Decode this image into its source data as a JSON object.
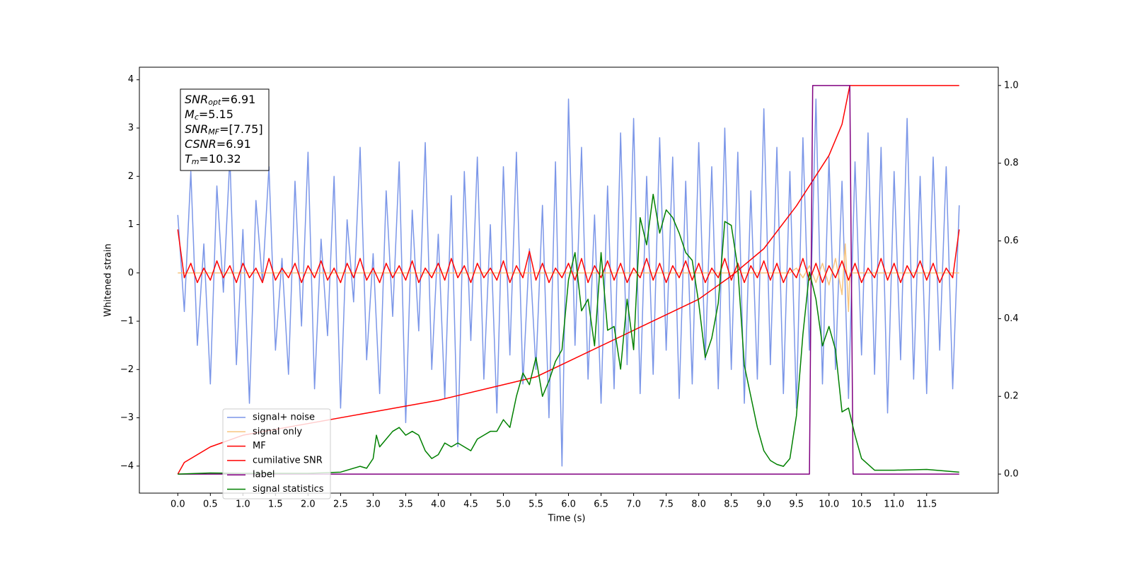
{
  "chart_data": {
    "type": "line",
    "xlabel": "Time (s)",
    "ylabel": "Whitened strain",
    "xlim": [
      -0.59,
      12.6
    ],
    "ylim": [
      -4.56,
      4.26
    ],
    "y2lim": [
      -0.049,
      1.047
    ],
    "xticks": [
      {
        "value": 0,
        "label": "0.0"
      },
      0.5,
      {
        "value": 1,
        "label": "1.0"
      },
      1.5,
      {
        "value": 2,
        "label": "2.0"
      },
      2.5,
      {
        "value": 3,
        "label": "3.0"
      },
      3.5,
      {
        "value": 4,
        "label": "4.0"
      },
      4.5,
      {
        "value": 5,
        "label": "5.0"
      },
      5.5,
      {
        "value": 6,
        "label": "6.0"
      },
      6.5,
      {
        "value": 7,
        "label": "7.0"
      },
      7.5,
      {
        "value": 8,
        "label": "8.0"
      },
      8.5,
      {
        "value": 9,
        "label": "9.0"
      },
      9.5,
      {
        "value": 10,
        "label": "10.0"
      },
      10.5,
      {
        "value": 11,
        "label": "11.0"
      },
      11.5
    ],
    "yticks": [
      {
        "value": -4,
        "label": "−4"
      },
      {
        "value": -3,
        "label": "−3"
      },
      {
        "value": -2,
        "label": "−2"
      },
      {
        "value": -1,
        "label": "−1"
      },
      0,
      1,
      2,
      3,
      4
    ],
    "y2ticks": [
      {
        "value": 0,
        "label": "0.0"
      },
      0.2,
      0.4,
      0.6,
      0.8,
      {
        "value": 1,
        "label": "1.0"
      }
    ],
    "legend": "lower left",
    "annotations": [
      {
        "main": "SNR",
        "sub": "opt",
        "rest": "=6.91"
      },
      {
        "main": "M",
        "sub": "c",
        "rest": "=5.15"
      },
      {
        "main": "SNR",
        "sub": "MF",
        "rest": "=[7.75]"
      },
      {
        "main": "CSNR",
        "sub": null,
        "rest": "=6.91"
      },
      {
        "main": "T",
        "sub": "m",
        "rest": "=10.32"
      }
    ],
    "x": [
      0,
      0.1,
      0.2,
      0.3,
      0.4,
      0.5,
      0.6,
      0.7,
      0.8,
      0.9,
      1.0,
      1.1,
      1.2,
      1.3,
      1.4,
      1.5,
      1.6,
      1.7,
      1.8,
      1.9,
      2.0,
      2.1,
      2.2,
      2.3,
      2.4,
      2.5,
      2.6,
      2.7,
      2.8,
      2.9,
      3.0,
      3.1,
      3.2,
      3.3,
      3.4,
      3.5,
      3.6,
      3.7,
      3.8,
      3.9,
      4.0,
      4.1,
      4.2,
      4.3,
      4.4,
      4.5,
      4.6,
      4.7,
      4.8,
      4.9,
      5.0,
      5.1,
      5.2,
      5.3,
      5.4,
      5.5,
      5.6,
      5.7,
      5.8,
      5.9,
      6.0,
      6.1,
      6.2,
      6.3,
      6.4,
      6.5,
      6.6,
      6.7,
      6.8,
      6.9,
      7.0,
      7.1,
      7.2,
      7.3,
      7.4,
      7.5,
      7.6,
      7.7,
      7.8,
      7.9,
      8.0,
      8.1,
      8.2,
      8.3,
      8.4,
      8.5,
      8.6,
      8.7,
      8.8,
      8.9,
      9.0,
      9.1,
      9.2,
      9.3,
      9.4,
      9.5,
      9.6,
      9.7,
      9.8,
      9.9,
      10.0,
      10.1,
      10.2,
      10.3,
      10.4,
      10.5,
      10.6,
      10.7,
      10.8,
      10.9,
      11.0,
      11.1,
      11.2,
      11.3,
      11.4,
      11.5,
      11.6,
      11.7,
      11.8,
      11.9,
      12.0
    ],
    "series": [
      {
        "name": "signal+ noise",
        "color": "#7b96e8",
        "values": [
          1.2,
          -0.8,
          2.1,
          -1.5,
          0.6,
          -2.3,
          1.8,
          -0.4,
          2.4,
          -1.9,
          0.9,
          -2.7,
          1.5,
          -0.2,
          2.2,
          -1.6,
          0.3,
          -2.1,
          1.9,
          -1.1,
          2.5,
          -2.4,
          0.7,
          -1.3,
          2.0,
          -2.8,
          1.1,
          -0.6,
          2.6,
          -1.8,
          0.4,
          -2.5,
          1.7,
          -0.9,
          2.3,
          -3.1,
          1.3,
          -1.2,
          2.7,
          -2.0,
          0.8,
          -2.6,
          1.6,
          -3.6,
          2.1,
          -1.4,
          2.4,
          -2.2,
          1.0,
          -2.9,
          2.2,
          -1.7,
          2.5,
          -2.3,
          0.5,
          -2.0,
          1.4,
          -3.0,
          2.3,
          -4.0,
          3.6,
          -1.5,
          2.6,
          -2.2,
          1.2,
          -2.7,
          1.8,
          -2.4,
          2.9,
          -1.9,
          3.2,
          -2.5,
          2.0,
          -2.1,
          2.8,
          -1.6,
          2.4,
          -2.6,
          1.9,
          -2.3,
          2.7,
          -1.8,
          2.2,
          -2.4,
          3.0,
          -2.0,
          2.5,
          -2.7,
          1.7,
          -2.2,
          3.4,
          -1.9,
          2.6,
          -2.5,
          2.1,
          -2.8,
          2.8,
          -1.6,
          3.6,
          -2.3,
          2.4,
          -2.0,
          1.9,
          -2.6,
          2.3,
          -1.7,
          2.9,
          -2.1,
          2.6,
          -2.9,
          2.1,
          -1.8,
          3.2,
          -2.2,
          2.0,
          -2.5,
          2.4,
          -1.6,
          2.2,
          -2.4,
          1.4
        ]
      },
      {
        "name": "signal only",
        "color": "#f7c57f",
        "x": [
          0,
          9.4,
          9.5,
          9.6,
          9.7,
          9.8,
          9.9,
          10.0,
          10.1,
          10.2,
          10.25,
          10.3,
          10.32,
          12
        ],
        "values": [
          0,
          0,
          0.1,
          -0.1,
          0.15,
          -0.2,
          0.2,
          -0.25,
          0.3,
          -0.45,
          0.6,
          -0.8,
          0,
          0
        ]
      },
      {
        "name": "MF",
        "color": "#ff0000",
        "values": [
          0.9,
          -0.1,
          0.2,
          -0.2,
          0.1,
          -0.15,
          0.25,
          -0.1,
          0.15,
          -0.2,
          0.2,
          -0.1,
          0.1,
          -0.2,
          0.3,
          -0.15,
          0.1,
          -0.1,
          0.2,
          -0.2,
          0.15,
          -0.1,
          0.25,
          -0.15,
          0.1,
          -0.2,
          0.2,
          -0.1,
          0.3,
          -0.15,
          0.1,
          -0.2,
          0.2,
          -0.1,
          0.15,
          -0.15,
          0.25,
          -0.2,
          0.1,
          -0.1,
          0.2,
          -0.15,
          0.3,
          -0.1,
          0.15,
          -0.2,
          0.2,
          -0.1,
          0.1,
          -0.15,
          0.25,
          -0.2,
          0.15,
          -0.1,
          0.45,
          -0.15,
          0.2,
          -0.2,
          0.1,
          -0.1,
          0.2,
          -0.15,
          0.3,
          -0.2,
          0.15,
          -0.1,
          0.25,
          -0.15,
          0.2,
          -0.2,
          0.1,
          -0.1,
          0.3,
          -0.15,
          0.2,
          -0.2,
          0.15,
          -0.1,
          0.25,
          -0.15,
          0.2,
          -0.2,
          0.1,
          -0.1,
          0.3,
          -0.15,
          0.2,
          -0.2,
          0.15,
          -0.1,
          0.25,
          -0.15,
          0.2,
          -0.2,
          0.1,
          -0.1,
          0.3,
          -0.15,
          0.2,
          -0.2,
          0.15,
          -0.1,
          0.25,
          -0.15,
          0.2,
          -0.2,
          0.1,
          -0.1,
          0.3,
          -0.15,
          0.2,
          -0.2,
          0.15,
          -0.1,
          0.25,
          -0.15,
          0.2,
          -0.2,
          0.1,
          -0.1,
          0.9
        ]
      },
      {
        "name": "cumilative SNR",
        "color": "#ff0000",
        "axis": "y2",
        "x": [
          0,
          0.1,
          0.5,
          1,
          2,
          3,
          4,
          5,
          5.5,
          6,
          7,
          8,
          8.5,
          9,
          9.5,
          10,
          10.2,
          10.32,
          12
        ],
        "values": [
          0,
          0.03,
          0.07,
          0.1,
          0.13,
          0.16,
          0.19,
          0.23,
          0.25,
          0.29,
          0.37,
          0.45,
          0.51,
          0.58,
          0.69,
          0.82,
          0.9,
          1.0,
          1.0
        ]
      },
      {
        "name": "label",
        "color": "#800080",
        "axis": "y2",
        "x": [
          0,
          9.7,
          9.75,
          10.32,
          10.37,
          12
        ],
        "values": [
          0,
          0,
          1,
          1,
          0,
          0
        ]
      },
      {
        "name": "signal statistics",
        "color": "#008000",
        "axis": "y2",
        "x": [
          0,
          0.5,
          1.0,
          1.5,
          2.0,
          2.5,
          2.8,
          2.9,
          3.0,
          3.05,
          3.1,
          3.2,
          3.3,
          3.4,
          3.5,
          3.6,
          3.7,
          3.8,
          3.9,
          4.0,
          4.1,
          4.2,
          4.3,
          4.4,
          4.5,
          4.6,
          4.7,
          4.8,
          4.9,
          5.0,
          5.1,
          5.2,
          5.3,
          5.4,
          5.5,
          5.6,
          5.7,
          5.8,
          5.9,
          6.0,
          6.1,
          6.2,
          6.3,
          6.4,
          6.5,
          6.6,
          6.7,
          6.8,
          6.9,
          7.0,
          7.1,
          7.2,
          7.3,
          7.4,
          7.5,
          7.6,
          7.7,
          7.8,
          7.9,
          8.0,
          8.1,
          8.2,
          8.3,
          8.4,
          8.5,
          8.6,
          8.7,
          8.8,
          8.9,
          9.0,
          9.1,
          9.2,
          9.3,
          9.4,
          9.5,
          9.6,
          9.7,
          9.8,
          9.9,
          10.0,
          10.1,
          10.2,
          10.3,
          10.4,
          10.5,
          10.7,
          11.0,
          11.5,
          12.0
        ],
        "values": [
          0,
          0.003,
          0.002,
          0.002,
          0.002,
          0.005,
          0.02,
          0.015,
          0.04,
          0.1,
          0.07,
          0.09,
          0.11,
          0.12,
          0.1,
          0.11,
          0.1,
          0.06,
          0.04,
          0.05,
          0.08,
          0.07,
          0.08,
          0.07,
          0.06,
          0.09,
          0.1,
          0.11,
          0.11,
          0.14,
          0.12,
          0.2,
          0.26,
          0.23,
          0.3,
          0.2,
          0.24,
          0.29,
          0.32,
          0.5,
          0.57,
          0.42,
          0.45,
          0.33,
          0.57,
          0.37,
          0.38,
          0.27,
          0.45,
          0.32,
          0.66,
          0.59,
          0.72,
          0.62,
          0.68,
          0.66,
          0.62,
          0.57,
          0.55,
          0.44,
          0.3,
          0.35,
          0.44,
          0.65,
          0.64,
          0.53,
          0.28,
          0.2,
          0.12,
          0.06,
          0.035,
          0.025,
          0.02,
          0.04,
          0.15,
          0.36,
          0.52,
          0.45,
          0.33,
          0.38,
          0.32,
          0.16,
          0.17,
          0.1,
          0.04,
          0.01,
          0.01,
          0.012,
          0.005
        ]
      }
    ]
  }
}
